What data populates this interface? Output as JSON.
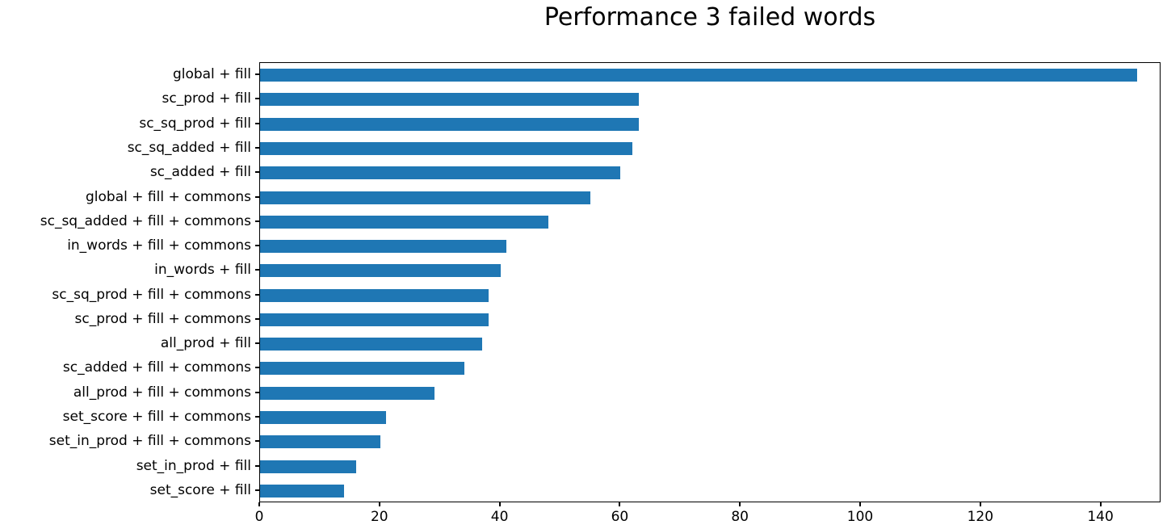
{
  "chart_data": {
    "type": "bar",
    "orientation": "horizontal",
    "title": "Performance 3 failed words",
    "categories": [
      "global + fill",
      "sc_prod + fill",
      "sc_sq_prod + fill",
      "sc_sq_added + fill",
      "sc_added + fill",
      "global + fill + commons",
      "sc_sq_added + fill + commons",
      "in_words + fill + commons",
      "in_words + fill",
      "sc_sq_prod + fill + commons",
      "sc_prod + fill + commons",
      "all_prod + fill",
      "sc_added + fill + commons",
      "all_prod + fill + commons",
      "set_score + fill + commons",
      "set_in_prod + fill + commons",
      "set_in_prod + fill",
      "set_score + fill"
    ],
    "values": [
      146,
      63,
      63,
      62,
      60,
      55,
      48,
      41,
      40,
      38,
      38,
      37,
      34,
      29,
      21,
      20,
      16,
      14
    ],
    "xlabel": "",
    "ylabel": "",
    "xlim": [
      0,
      150
    ],
    "x_ticks": [
      0,
      20,
      40,
      60,
      80,
      100,
      120,
      140
    ],
    "bar_color": "#1f77b4",
    "axis_color": "#000000",
    "grid": false,
    "legend": null
  }
}
